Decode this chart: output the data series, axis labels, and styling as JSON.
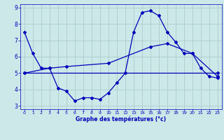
{
  "xlabel": "Graphe des températures (°c)",
  "bg_color": "#cce8e8",
  "line_color": "#0000bb",
  "grid_color": "#aacccc",
  "xlim": [
    -0.5,
    23.5
  ],
  "ylim": [
    2.8,
    9.2
  ],
  "yticks": [
    3,
    4,
    5,
    6,
    7,
    8,
    9
  ],
  "xticks": [
    0,
    1,
    2,
    3,
    4,
    5,
    6,
    7,
    8,
    9,
    10,
    11,
    12,
    13,
    14,
    15,
    16,
    17,
    18,
    19,
    20,
    21,
    22,
    23
  ],
  "series1_x": [
    0,
    1,
    2,
    3,
    4,
    5,
    6,
    7,
    8,
    9,
    10,
    11,
    12,
    13,
    14,
    15,
    16,
    17,
    18,
    19,
    20,
    21,
    22,
    23
  ],
  "series1_y": [
    7.5,
    6.2,
    5.3,
    5.3,
    4.1,
    3.9,
    3.3,
    3.5,
    3.5,
    3.4,
    3.8,
    4.4,
    5.0,
    7.5,
    8.7,
    8.8,
    8.5,
    7.5,
    6.9,
    6.2,
    6.2,
    5.3,
    4.8,
    4.7
  ],
  "series2_x": [
    0,
    3,
    5,
    10,
    15,
    17,
    20,
    23
  ],
  "series2_y": [
    5.0,
    5.3,
    5.4,
    5.6,
    6.6,
    6.8,
    6.2,
    4.8
  ],
  "series3_x": [
    0,
    23
  ],
  "series3_y": [
    5.0,
    5.0
  ]
}
